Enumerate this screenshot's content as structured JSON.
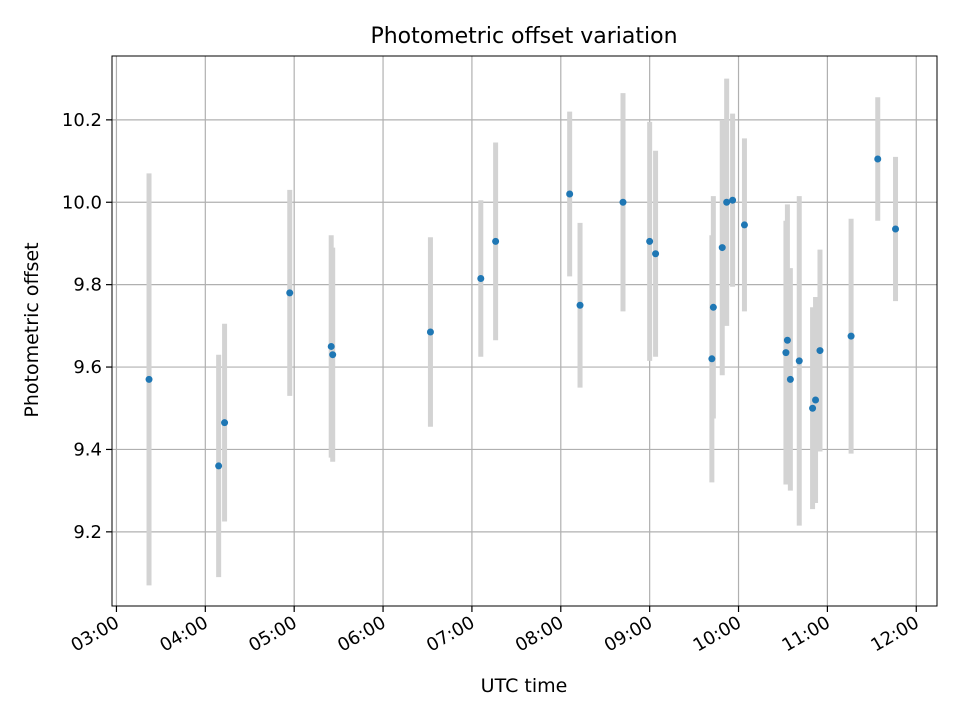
{
  "chart_data": {
    "type": "scatter",
    "title": "Photometric offset variation",
    "xlabel": "UTC time",
    "ylabel": "Photometric offset",
    "x_ticks": [
      "03:00",
      "04:00",
      "05:00",
      "06:00",
      "07:00",
      "08:00",
      "09:00",
      "10:00",
      "11:00",
      "12:00"
    ],
    "y_ticks": [
      "9.2",
      "9.4",
      "9.6",
      "9.8",
      "10.0",
      "10.2"
    ],
    "xlim": [
      "02:57",
      "12:14"
    ],
    "ylim": [
      9.02,
      10.355
    ],
    "grid": true,
    "colors": {
      "point": "#1f77b4",
      "errorbar": "#d3d3d3",
      "grid": "#b0b0b0",
      "frame": "#000000"
    },
    "series": [
      {
        "points": [
          {
            "x": "03:22",
            "y": 9.57,
            "err": 0.5
          },
          {
            "x": "04:09",
            "y": 9.36,
            "err": 0.27
          },
          {
            "x": "04:13",
            "y": 9.465,
            "err": 0.24
          },
          {
            "x": "04:57",
            "y": 9.78,
            "err": 0.25
          },
          {
            "x": "05:25",
            "y": 9.65,
            "err": 0.27
          },
          {
            "x": "05:26",
            "y": 9.63,
            "err": 0.26
          },
          {
            "x": "06:32",
            "y": 9.685,
            "err": 0.23
          },
          {
            "x": "07:06",
            "y": 9.815,
            "err": 0.19
          },
          {
            "x": "07:16",
            "y": 9.905,
            "err": 0.24
          },
          {
            "x": "08:06",
            "y": 10.02,
            "err": 0.2
          },
          {
            "x": "08:13",
            "y": 9.75,
            "err": 0.2
          },
          {
            "x": "08:42",
            "y": 10.0,
            "err": 0.265
          },
          {
            "x": "09:00",
            "y": 9.905,
            "err": 0.29
          },
          {
            "x": "09:04",
            "y": 9.875,
            "err": 0.25
          },
          {
            "x": "09:42",
            "y": 9.62,
            "err": 0.3
          },
          {
            "x": "09:43",
            "y": 9.745,
            "err": 0.27
          },
          {
            "x": "09:49",
            "y": 9.89,
            "err": 0.31
          },
          {
            "x": "09:52",
            "y": 10.0,
            "err": 0.3
          },
          {
            "x": "09:56",
            "y": 10.005,
            "err": 0.21
          },
          {
            "x": "10:04",
            "y": 9.945,
            "err": 0.21
          },
          {
            "x": "10:32",
            "y": 9.635,
            "err": 0.32
          },
          {
            "x": "10:33",
            "y": 9.665,
            "err": 0.33
          },
          {
            "x": "10:35",
            "y": 9.57,
            "err": 0.27
          },
          {
            "x": "10:41",
            "y": 9.615,
            "err": 0.4
          },
          {
            "x": "10:50",
            "y": 9.5,
            "err": 0.245
          },
          {
            "x": "10:52",
            "y": 9.52,
            "err": 0.25
          },
          {
            "x": "10:55",
            "y": 9.64,
            "err": 0.245
          },
          {
            "x": "11:16",
            "y": 9.675,
            "err": 0.285
          },
          {
            "x": "11:34",
            "y": 10.105,
            "err": 0.15
          },
          {
            "x": "11:46",
            "y": 9.935,
            "err": 0.175
          }
        ]
      }
    ]
  }
}
